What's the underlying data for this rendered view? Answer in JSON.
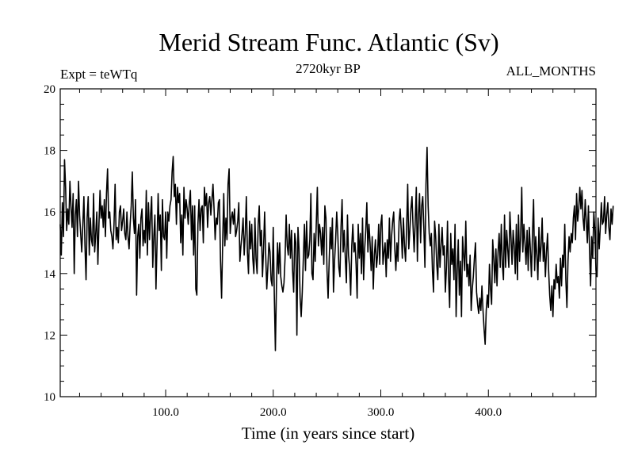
{
  "chart_data": {
    "type": "line",
    "title": "Merid Stream Func. Atlantic (Sv)",
    "subtitle_left": "Expt = teWTq",
    "subtitle_center": "2720kyr BP",
    "subtitle_right": "ALL_MONTHS",
    "xlabel": "Time (in years since start)",
    "ylabel": "",
    "xlim": [
      2,
      500
    ],
    "ylim": [
      10,
      20
    ],
    "xticks": [
      100,
      200,
      300,
      400
    ],
    "xtick_labels": [
      "100.0",
      "200.0",
      "300.0",
      "400.0"
    ],
    "yticks": [
      10,
      12,
      14,
      16,
      18,
      20
    ],
    "ytick_labels": [
      "10",
      "12",
      "14",
      "16",
      "18",
      "20"
    ],
    "series": [
      {
        "name": "Merid Stream Func. Atlantic",
        "x_start": 2,
        "x_step": 1,
        "values": [
          15.6,
          14.6,
          16.3,
          15.2,
          17.7,
          16.8,
          15.4,
          16.1,
          15.6,
          17.0,
          16.2,
          15.5,
          16.6,
          14.0,
          15.9,
          16.4,
          15.2,
          17.0,
          15.9,
          15.3,
          14.7,
          15.6,
          16.5,
          14.9,
          13.8,
          15.8,
          16.5,
          14.6,
          15.8,
          15.1,
          14.9,
          16.6,
          14.7,
          15.3,
          16.0,
          14.3,
          15.6,
          16.7,
          15.8,
          16.2,
          15.5,
          16.4,
          15.2,
          16.6,
          17.4,
          15.8,
          16.0,
          15.4,
          15.2,
          14.8,
          15.6,
          16.9,
          15.1,
          15.5,
          15.0,
          16.0,
          16.2,
          15.4,
          15.7,
          16.1,
          15.3,
          15.1,
          16.0,
          15.2,
          14.8,
          15.6,
          16.2,
          17.3,
          15.8,
          15.3,
          16.4,
          13.3,
          15.2,
          15.6,
          14.5,
          15.8,
          16.1,
          14.9,
          15.4,
          15.0,
          16.7,
          14.6,
          16.3,
          15.1,
          15.9,
          16.5,
          14.2,
          15.2,
          15.9,
          13.5,
          15.0,
          16.6,
          15.4,
          15.9,
          14.1,
          16.4,
          15.2,
          15.1,
          16.0,
          14.5,
          16.0,
          15.7,
          16.2,
          16.4,
          17.3,
          17.8,
          16.5,
          16.9,
          15.6,
          16.8,
          16.3,
          16.6,
          15.0,
          15.9,
          14.6,
          16.8,
          15.8,
          16.4,
          16.1,
          15.6,
          16.3,
          16.7,
          15.1,
          16.2,
          14.6,
          16.2,
          13.5,
          13.3,
          15.6,
          16.4,
          15.4,
          16.1,
          16.2,
          15.0,
          16.8,
          16.2,
          16.6,
          15.5,
          16.3,
          16.5,
          15.9,
          16.4,
          16.9,
          16.1,
          15.1,
          15.8,
          15.6,
          16.3,
          16.4,
          14.4,
          13.2,
          15.0,
          16.6,
          14.9,
          15.8,
          15.1,
          16.9,
          17.4,
          15.3,
          15.8,
          16.0,
          15.6,
          16.1,
          15.2,
          15.4,
          15.7,
          16.3,
          14.4,
          14.9,
          15.3,
          15.8,
          14.6,
          15.3,
          16.5,
          14.7,
          14.0,
          15.7,
          14.8,
          15.6,
          14.5,
          14.0,
          15.8,
          14.5,
          14.0,
          15.6,
          16.2,
          14.9,
          15.4,
          13.9,
          14.8,
          16.0,
          14.6,
          13.5,
          14.2,
          15.0,
          14.7,
          13.8,
          13.6,
          15.5,
          13.3,
          11.5,
          13.6,
          15.0,
          14.0,
          15.0,
          13.9,
          13.6,
          13.4,
          13.7,
          14.5,
          15.9,
          14.9,
          14.6,
          15.6,
          14.5,
          15.4,
          14.1,
          13.4,
          15.3,
          15.0,
          12.0,
          15.5,
          14.8,
          13.2,
          12.6,
          13.4,
          14.5,
          15.6,
          14.1,
          15.7,
          14.5,
          14.6,
          15.1,
          16.6,
          14.0,
          13.8,
          15.3,
          14.4,
          15.6,
          16.8,
          14.9,
          15.6,
          15.3,
          14.6,
          15.5,
          14.3,
          16.2,
          15.8,
          14.1,
          13.2,
          14.4,
          15.5,
          14.8,
          15.8,
          13.4,
          14.4,
          15.1,
          16.0,
          15.3,
          14.2,
          13.9,
          15.5,
          16.4,
          14.7,
          15.4,
          14.5,
          13.7,
          15.9,
          14.6,
          14.2,
          13.3,
          14.9,
          15.6,
          14.7,
          15.0,
          14.3,
          13.2,
          15.6,
          14.5,
          15.3,
          14.0,
          15.8,
          13.8,
          14.8,
          15.4,
          16.3,
          14.7,
          15.6,
          15.0,
          14.1,
          15.2,
          13.5,
          14.6,
          15.1,
          14.2,
          14.6,
          15.6,
          14.3,
          15.6,
          15.9,
          14.3,
          14.7,
          15.0,
          13.9,
          15.1,
          14.5,
          15.8,
          14.4,
          15.2,
          15.7,
          16.0,
          14.8,
          14.1,
          15.0,
          14.4,
          15.7,
          16.1,
          15.4,
          14.5,
          15.8,
          14.9,
          14.4,
          15.5,
          16.9,
          14.8,
          15.4,
          16.1,
          16.5,
          15.5,
          14.7,
          15.7,
          16.8,
          14.4,
          15.9,
          16.6,
          15.0,
          16.2,
          16.5,
          15.5,
          14.2,
          16.9,
          18.1,
          16.2,
          15.3,
          14.9,
          15.3,
          14.1,
          13.4,
          15.7,
          15.2,
          14.3,
          13.8,
          15.6,
          14.2,
          14.9,
          15.5,
          14.6,
          14.9,
          13.4,
          14.2,
          15.7,
          13.9,
          12.9,
          15.3,
          14.3,
          14.8,
          13.8,
          15.6,
          12.6,
          14.1,
          15.1,
          13.3,
          14.4,
          12.6,
          15.2,
          14.6,
          14.1,
          15.7,
          13.9,
          14.3,
          13.6,
          14.6,
          12.8,
          13.5,
          13.9,
          14.5,
          15.0,
          13.4,
          13.0,
          12.7,
          13.2,
          12.8,
          13.6,
          12.8,
          12.2,
          11.7,
          12.8,
          13.3,
          12.9,
          14.3,
          13.5,
          13.0,
          15.1,
          14.5,
          13.7,
          14.8,
          13.6,
          14.7,
          15.3,
          14.2,
          15.6,
          14.3,
          13.8,
          15.9,
          14.2,
          15.4,
          14.8,
          14.2,
          16.0,
          15.2,
          14.3,
          15.4,
          14.9,
          14.0,
          15.6,
          13.8,
          15.9,
          14.4,
          15.2,
          16.8,
          14.7,
          15.6,
          15.0,
          14.3,
          15.4,
          14.1,
          15.5,
          14.8,
          13.9,
          15.3,
          16.4,
          14.1,
          15.2,
          14.6,
          13.8,
          15.5,
          14.4,
          14.9,
          15.8,
          14.4,
          15.0,
          13.9,
          14.7,
          15.3,
          14.1,
          13.3,
          12.8,
          13.6,
          12.6,
          13.8,
          13.5,
          14.3,
          13.7,
          13.9,
          13.2,
          14.5,
          13.6,
          14.6,
          14.2,
          15.6,
          13.8,
          12.9,
          14.4,
          15.2,
          14.7,
          15.3,
          15.0,
          15.8,
          16.2,
          15.1,
          16.6,
          15.7,
          16.1,
          16.8,
          16.1,
          16.7,
          15.8,
          15.4,
          16.4,
          15.7,
          15.0,
          16.2,
          14.8,
          13.6,
          15.2,
          14.5,
          16.0,
          15.4,
          14.1,
          13.9,
          15.8,
          14.8,
          15.5,
          16.3,
          15.6,
          15.7,
          16.5,
          15.3,
          15.9,
          16.3,
          15.5,
          15.1,
          16.1,
          15.6,
          16.2
        ]
      }
    ],
    "line_color": "#000000"
  }
}
